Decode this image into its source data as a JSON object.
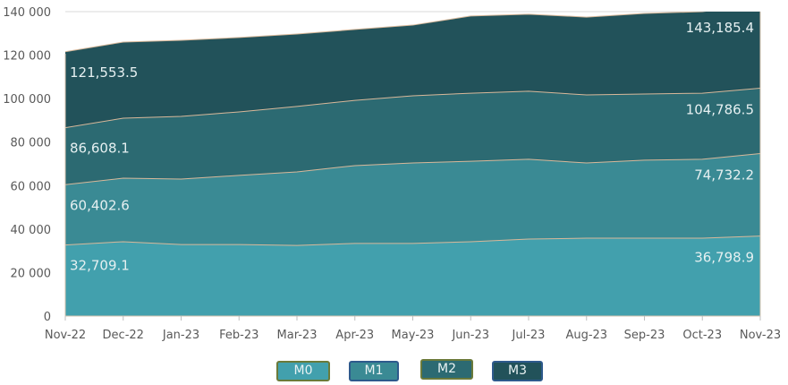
{
  "chart_data": {
    "type": "area",
    "categories": [
      "Nov-22",
      "Dec-22",
      "Jan-23",
      "Feb-23",
      "Mar-23",
      "Apr-23",
      "May-23",
      "Jun-23",
      "Jul-23",
      "Aug-23",
      "Sep-23",
      "Oct-23",
      "Nov-23"
    ],
    "ylim": [
      0,
      140000
    ],
    "yticks": [
      0,
      20000,
      40000,
      60000,
      80000,
      100000,
      120000,
      140000
    ],
    "ytick_labels": [
      "0",
      "20 000",
      "40 000",
      "60 000",
      "80 000",
      "100 000",
      "120 000",
      "140 000"
    ],
    "grid": true,
    "legend_position": "bottom",
    "series": [
      {
        "name": "M3",
        "color": "#22525a",
        "border": "#2e5a8c",
        "values": [
          121553.5,
          126000,
          126800,
          128100,
          129700,
          131800,
          133800,
          138000,
          138800,
          137500,
          139200,
          140000,
          143185.4
        ],
        "labels": [
          "121,553.5",
          "143,185.4"
        ]
      },
      {
        "name": "M2",
        "color": "#2c6a72",
        "border": "#6b7a3a",
        "values": [
          86608.1,
          91000,
          91800,
          93900,
          96400,
          99200,
          101300,
          102500,
          103400,
          101700,
          102100,
          102500,
          104786.5
        ],
        "labels": [
          "86,608.1",
          "104,786.5"
        ]
      },
      {
        "name": "M1",
        "color": "#3a8a94",
        "border": "#2e5a8c",
        "values": [
          60402.6,
          63400,
          63000,
          64700,
          66300,
          69200,
          70400,
          71200,
          72100,
          70400,
          71700,
          72100,
          74732.2
        ],
        "labels": [
          "60,402.6",
          "74,732.2"
        ]
      },
      {
        "name": "M0",
        "color": "#42a0ad",
        "border": "#6b7a3a",
        "values": [
          32709.1,
          34200,
          32900,
          32900,
          32500,
          33400,
          33400,
          34200,
          35400,
          35800,
          35800,
          35800,
          36798.9
        ],
        "labels": [
          "32,709.1",
          "36,798.9"
        ]
      }
    ],
    "line_color": "#d8b89a"
  }
}
